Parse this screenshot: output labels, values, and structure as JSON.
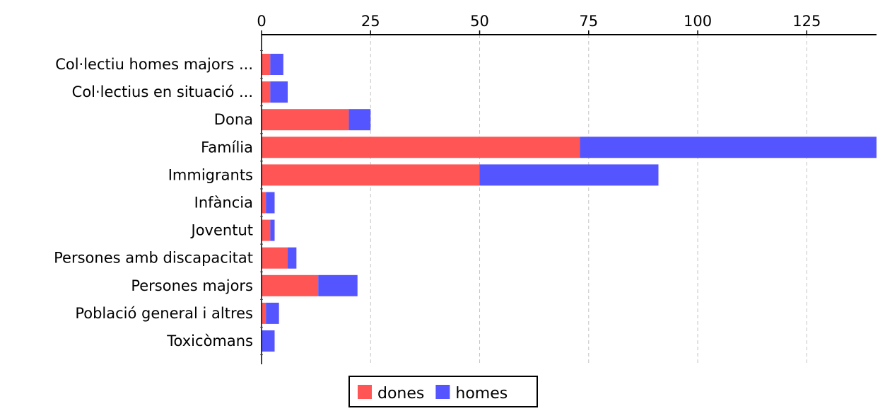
{
  "chart_data": {
    "type": "bar",
    "orientation": "horizontal",
    "stacked": true,
    "categories": [
      "Col·lectiu homes majors ...",
      "Col·lectius en situació ...",
      "Dona",
      "Família",
      "Immigrants",
      "Infància",
      "Joventut",
      "Persones amb discapacitat",
      "Persones majors",
      "Població general i altres",
      "Toxicòmans"
    ],
    "series": [
      {
        "name": "dones",
        "color": "#ff5555",
        "values": [
          2,
          2,
          20,
          73,
          50,
          1,
          2,
          6,
          13,
          1,
          0
        ]
      },
      {
        "name": "homes",
        "color": "#5555ff",
        "values": [
          3,
          4,
          5,
          68,
          41,
          2,
          1,
          2,
          9,
          3,
          3
        ]
      }
    ],
    "xlim": [
      0,
      141
    ],
    "xticks": [
      0,
      25,
      50,
      75,
      100,
      125
    ],
    "xaxis_position": "top",
    "grid": true,
    "legend": "bottom-center",
    "title": "",
    "xlabel": "",
    "ylabel": ""
  }
}
